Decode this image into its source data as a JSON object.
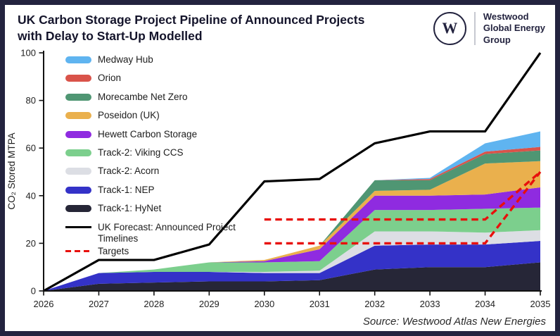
{
  "header": {
    "title_line1": "UK Carbon Storage Project Pipeline of Announced Projects",
    "title_line2": "with Delay to Start-Up Modelled",
    "logo": {
      "monogram": "W",
      "org_lines": [
        "Westwood",
        "Global Energy",
        "Group"
      ]
    }
  },
  "footer": {
    "source": "Source: Westwood Atlas New Energies"
  },
  "colors": {
    "frame": "#23233f",
    "title_text": "#14142b",
    "axis": "#111111",
    "forecast_black": "#000000",
    "target_red": "#e8100c"
  },
  "chart_data": {
    "type": "area",
    "stacked": true,
    "title": "UK Carbon Storage Project Pipeline of Announced Projects with Delay to Start-Up Modelled",
    "xlabel": "",
    "ylabel": "CO₂ Stored MTPA",
    "unit": "MTPA",
    "ylim": [
      0,
      100
    ],
    "yticks": [
      0,
      20,
      40,
      60,
      80,
      100
    ],
    "grid": false,
    "legend_position": "upper-left-inside",
    "x": [
      2026,
      2027,
      2028,
      2029,
      2030,
      2031,
      2032,
      2033,
      2034,
      2035
    ],
    "series": [
      {
        "name": "Track-1: HyNet",
        "color": "#262637",
        "values": [
          0,
          3,
          3.5,
          4,
          4,
          4.5,
          9,
          10,
          10,
          12
        ]
      },
      {
        "name": "Track-1: NEP",
        "color": "#3432c8",
        "values": [
          0,
          4.5,
          4.5,
          4,
          3.5,
          3,
          10,
          9.5,
          9.5,
          9
        ]
      },
      {
        "name": "Track-2: Acorn",
        "color": "#dcdee4",
        "values": [
          0,
          0,
          0,
          0,
          0.5,
          1,
          6,
          5.5,
          5,
          4.5
        ]
      },
      {
        "name": "Track-2: Viking CCS",
        "color": "#7ccf8d",
        "values": [
          0,
          0,
          1,
          4,
          4,
          4,
          9,
          9,
          10,
          9.5
        ]
      },
      {
        "name": "Hewett Carbon Storage",
        "color": "#8f2be0",
        "values": [
          0,
          0,
          0,
          0,
          0.5,
          5,
          6,
          6,
          6,
          8.5
        ]
      },
      {
        "name": "Poseidon (UK)",
        "color": "#eab04d",
        "values": [
          0,
          0,
          0,
          0,
          0.5,
          1.5,
          2,
          2.5,
          13,
          11
        ]
      },
      {
        "name": "Morecambe Net Zero",
        "color": "#4f9673",
        "values": [
          0,
          0,
          0,
          0,
          0,
          0,
          4.5,
          4,
          4,
          4.5
        ]
      },
      {
        "name": "Orion",
        "color": "#d9534a",
        "values": [
          0,
          0,
          0,
          0,
          0,
          0,
          0,
          0.5,
          1,
          1.5
        ]
      },
      {
        "name": "Medway Hub",
        "color": "#5fb4f0",
        "values": [
          0,
          0,
          0,
          0,
          0,
          0,
          0,
          0.5,
          3.5,
          6.5
        ]
      }
    ],
    "forecast_line": {
      "name": "UK Forecast: Announced Project Timelines",
      "color": "#000000",
      "values": [
        0,
        13,
        13,
        19.5,
        46,
        47,
        62,
        67,
        67,
        100
      ]
    },
    "target_lines": {
      "name": "Targets",
      "color": "#e8100c",
      "lines": [
        {
          "points": [
            [
              2030,
              30
            ],
            [
              2034,
              30
            ],
            [
              2035,
              50
            ]
          ]
        },
        {
          "points": [
            [
              2030,
              20
            ],
            [
              2034,
              20
            ],
            [
              2035,
              50
            ]
          ]
        }
      ]
    }
  },
  "legend": {
    "items": [
      {
        "label": "Medway Hub",
        "swatch": "area",
        "color": "#5fb4f0"
      },
      {
        "label": "Orion",
        "swatch": "area",
        "color": "#d9534a"
      },
      {
        "label": "Morecambe Net Zero",
        "swatch": "area",
        "color": "#4f9673"
      },
      {
        "label": "Poseidon (UK)",
        "swatch": "area",
        "color": "#eab04d"
      },
      {
        "label": "Hewett Carbon Storage",
        "swatch": "area",
        "color": "#8f2be0"
      },
      {
        "label": "Track-2: Viking CCS",
        "swatch": "area",
        "color": "#7ccf8d"
      },
      {
        "label": "Track-2: Acorn",
        "swatch": "area",
        "color": "#dcdee4"
      },
      {
        "label": "Track-1: NEP",
        "swatch": "area",
        "color": "#3432c8"
      },
      {
        "label": "Track-1: HyNet",
        "swatch": "area",
        "color": "#262637"
      },
      {
        "label": "UK Forecast: Announced Project Timelines",
        "swatch": "line",
        "color": "#000000"
      },
      {
        "label": "Targets",
        "swatch": "dashed-line",
        "color": "#e8100c"
      }
    ]
  }
}
